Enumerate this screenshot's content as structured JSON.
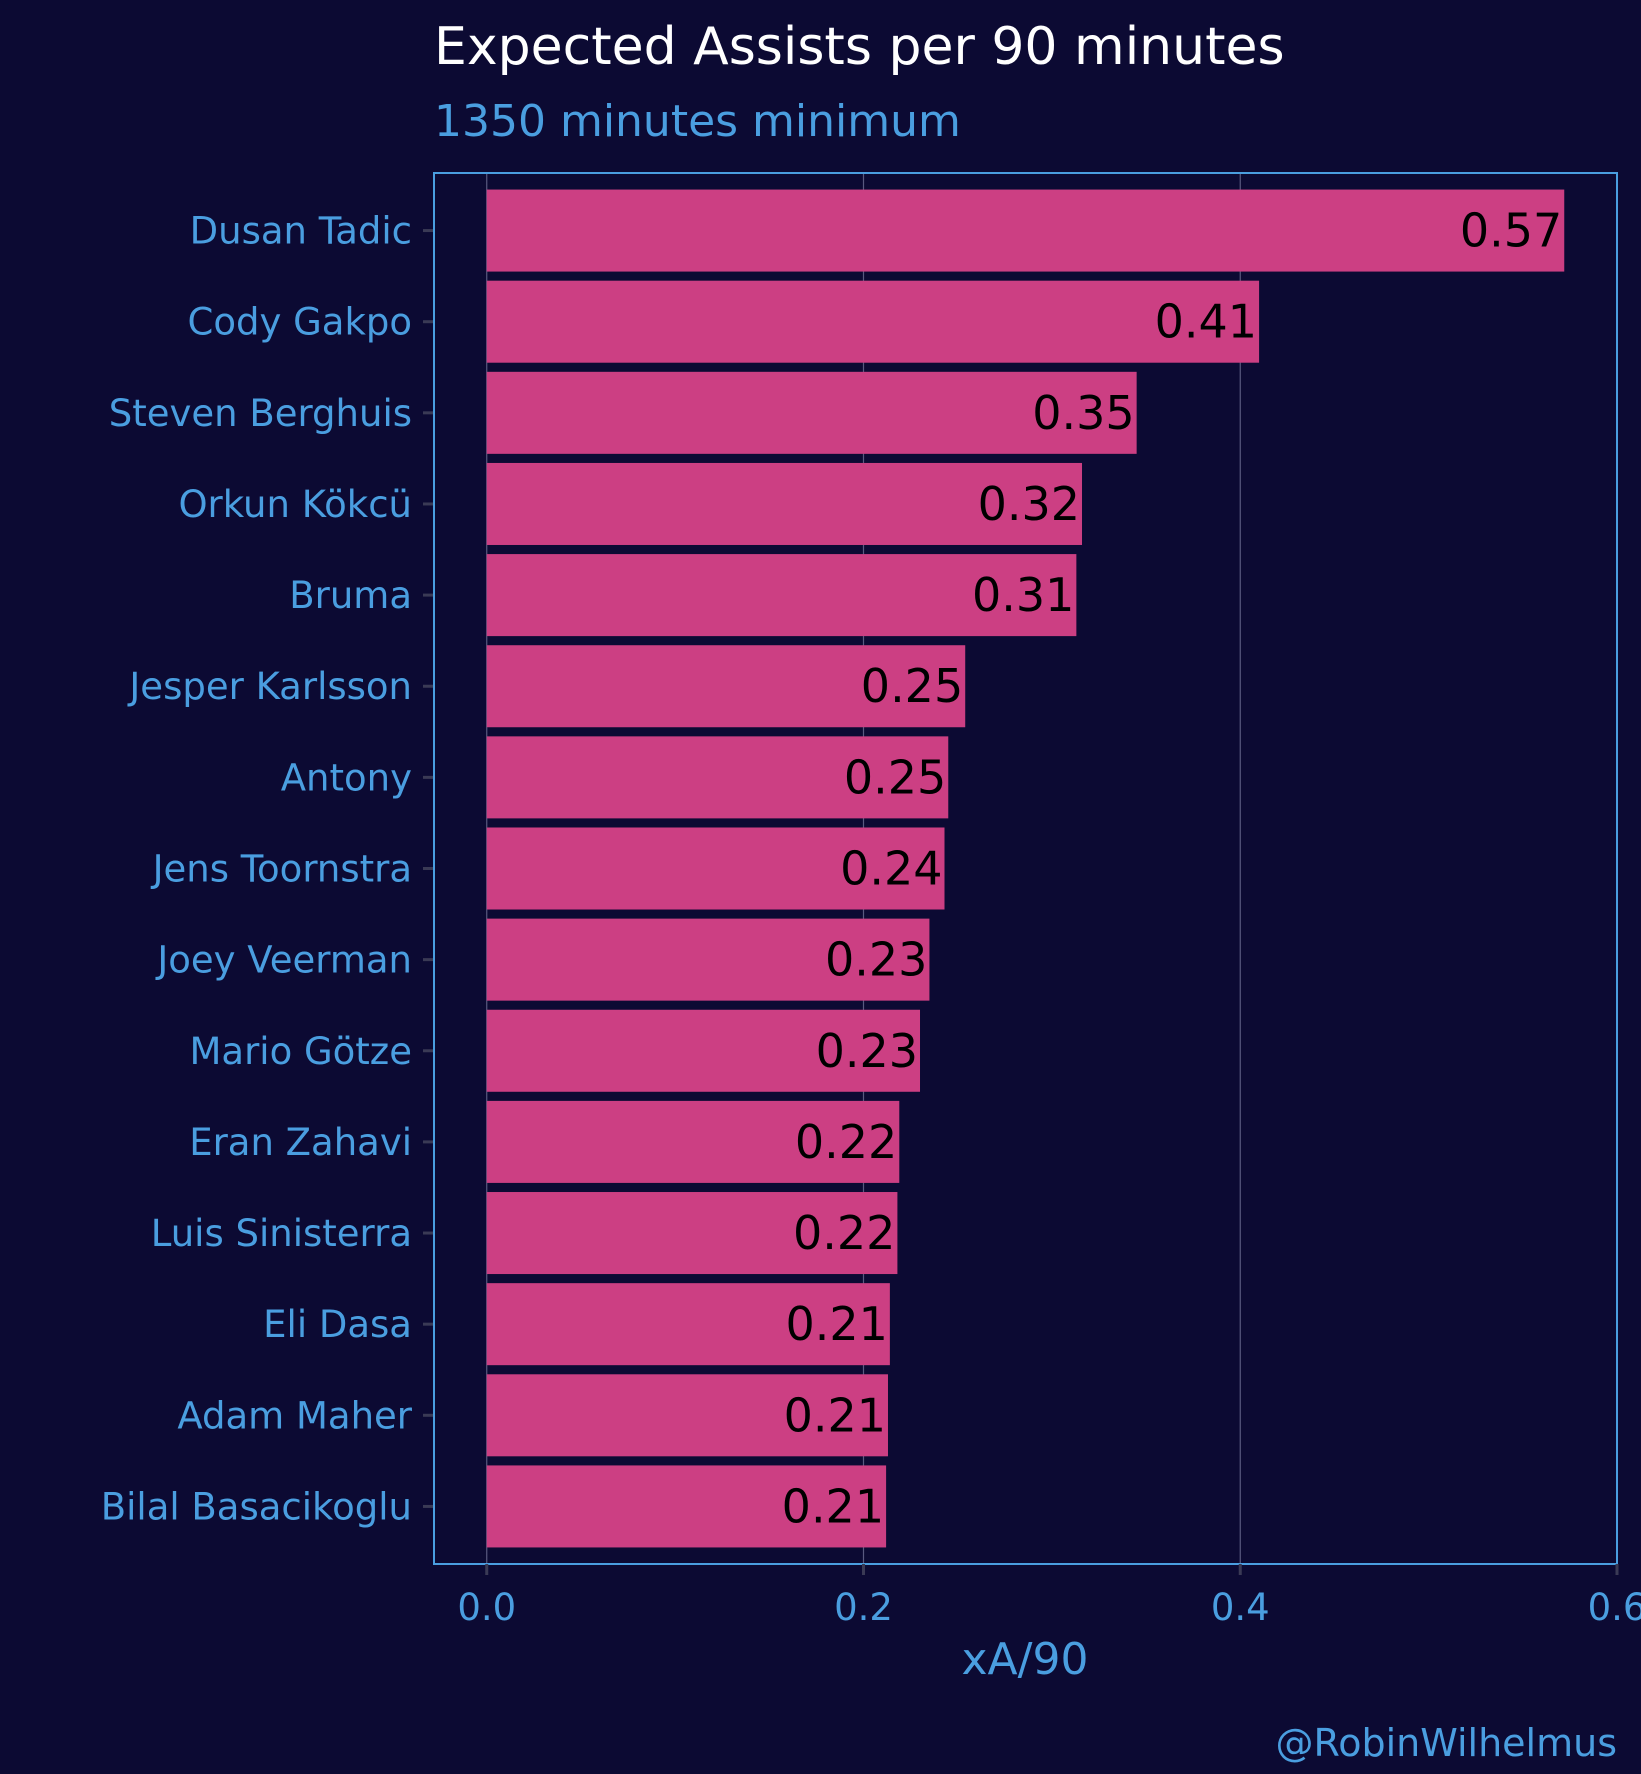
{
  "colors": {
    "background": "#0c0a33",
    "bar": "#cc3f83",
    "panel_border": "#4a9ee0",
    "text_accent": "#4a9ee0",
    "title": "#ffffff",
    "gridline": "#5a5a80",
    "bar_label": "#000000"
  },
  "chart_data": {
    "type": "bar",
    "orientation": "horizontal",
    "title": "Expected Assists per 90 minutes",
    "subtitle": "1350 minutes minimum",
    "xlabel": "xA/90",
    "ylabel": "",
    "caption": "@RobinWilhelmus",
    "xlim": [
      -0.028,
      0.6
    ],
    "xticks": [
      0.0,
      0.2,
      0.4,
      0.6
    ],
    "xtick_labels": [
      "0.0",
      "0.2",
      "0.4",
      "0.6"
    ],
    "grid": true,
    "legend": "none",
    "categories": [
      "Dusan Tadic",
      "Cody Gakpo",
      "Steven Berghuis",
      "Orkun Kökcü",
      "Bruma",
      "Jesper Karlsson",
      "Antony",
      "Jens Toornstra",
      "Joey Veerman",
      "Mario Götze",
      "Eran Zahavi",
      "Luis Sinisterra",
      "Eli Dasa",
      "Adam Maher",
      "Bilal Basacikoglu"
    ],
    "values": [
      0.572,
      0.41,
      0.345,
      0.316,
      0.313,
      0.254,
      0.245,
      0.243,
      0.235,
      0.23,
      0.219,
      0.218,
      0.214,
      0.213,
      0.212
    ],
    "value_labels": [
      "0.57",
      "0.41",
      "0.35",
      "0.32",
      "0.31",
      "0.25",
      "0.25",
      "0.24",
      "0.23",
      "0.23",
      "0.22",
      "0.22",
      "0.21",
      "0.21",
      "0.21"
    ]
  }
}
